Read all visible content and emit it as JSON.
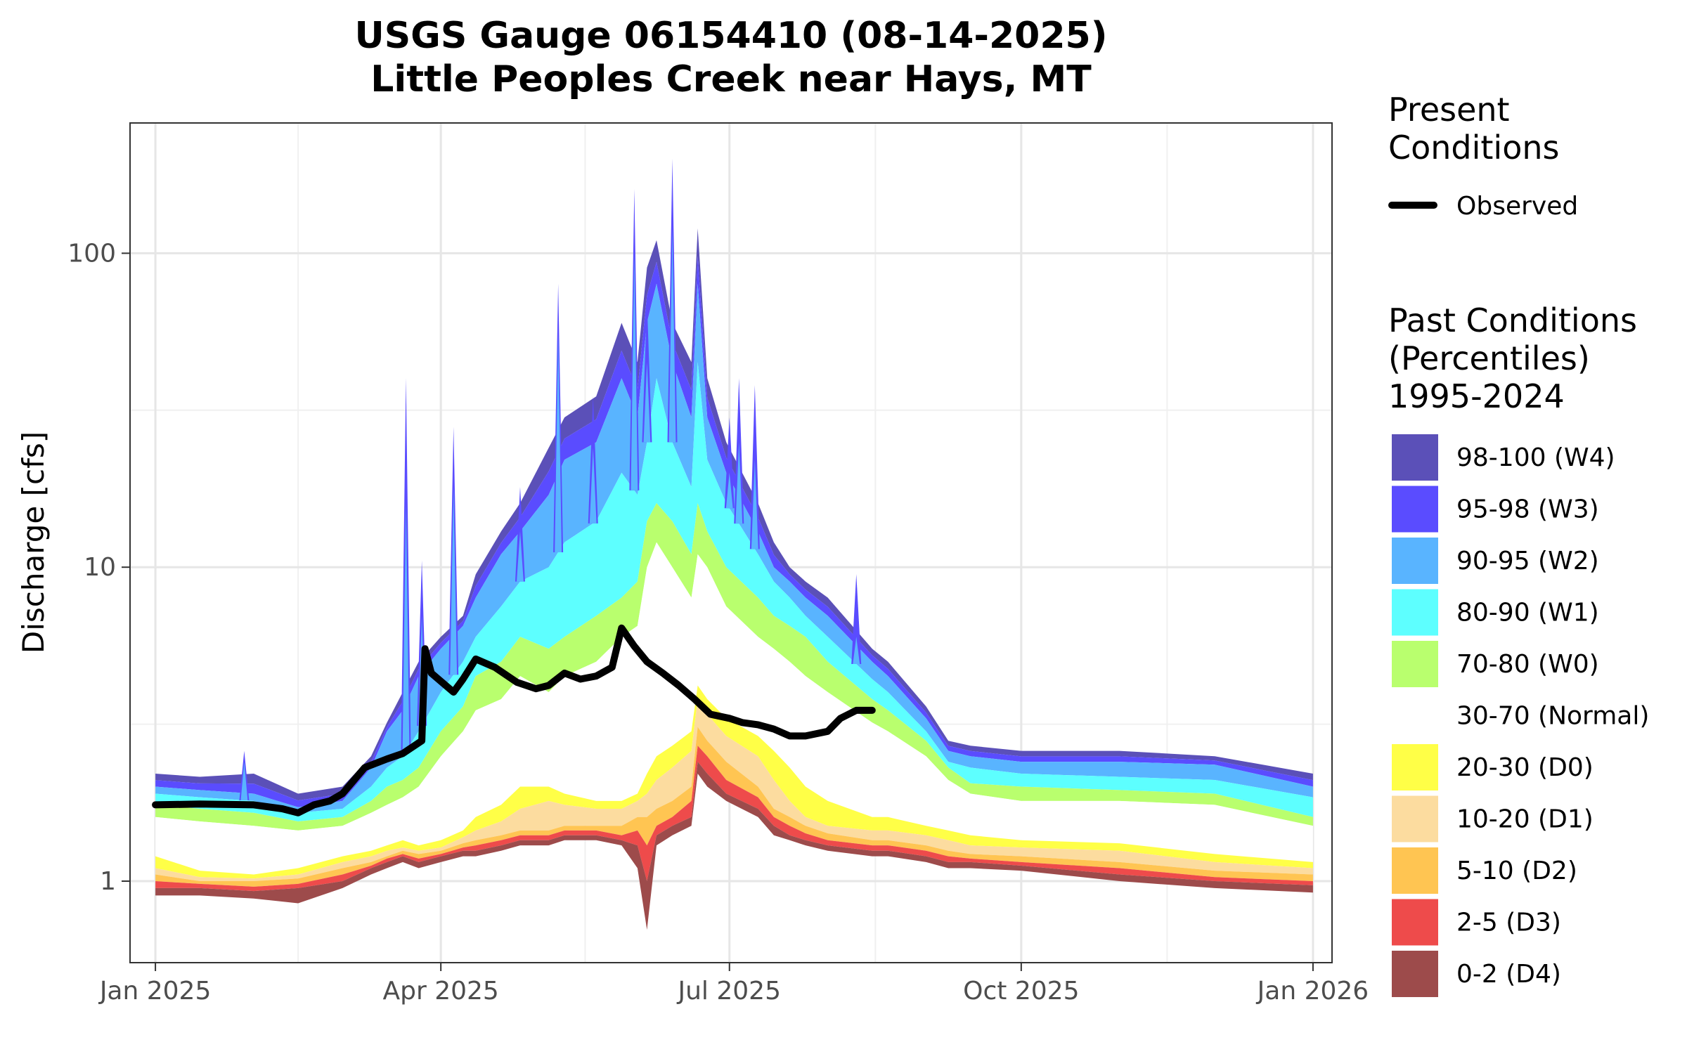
{
  "chart_data": {
    "type": "area",
    "title": [
      "USGS Gauge 06154410 (08-14-2025)",
      "Little Peoples Creek near Hays, MT"
    ],
    "xlabel": "",
    "ylabel": "Discharge [cfs]",
    "yscale": "log",
    "ylim": [
      0.55,
      260
    ],
    "xlim": [
      "2024-12-24",
      "2026-01-07"
    ],
    "x_ticks": [
      {
        "label": "Jan 2025",
        "date": "2025-01-01"
      },
      {
        "label": "Apr 2025",
        "date": "2025-04-01"
      },
      {
        "label": "Jul 2025",
        "date": "2025-07-01"
      },
      {
        "label": "Oct 2025",
        "date": "2025-10-01"
      },
      {
        "label": "Jan 2026",
        "date": "2026-01-01"
      }
    ],
    "y_ticks": [
      {
        "label": "1",
        "value": 1
      },
      {
        "label": "10",
        "value": 10
      },
      {
        "label": "100",
        "value": 100
      }
    ],
    "grid": true,
    "legend_position": "right",
    "legend": {
      "present_title": [
        "Present",
        "Conditions"
      ],
      "observed_label": "Observed",
      "past_title": [
        "Past Conditions",
        "(Percentiles)",
        "1995-2024"
      ],
      "bands": [
        {
          "label": "98-100 (W4)",
          "color": "#5b50b8"
        },
        {
          "label": "95-98 (W3)",
          "color": "#5a4cff"
        },
        {
          "label": "90-95 (W2)",
          "color": "#59b4ff"
        },
        {
          "label": "80-90 (W1)",
          "color": "#5dffff"
        },
        {
          "label": "70-80 (W0)",
          "color": "#b9ff6e"
        },
        {
          "label": "30-70 (Normal)",
          "color": "#ffffff"
        },
        {
          "label": "20-30 (D0)",
          "color": "#ffff47"
        },
        {
          "label": "10-20 (D1)",
          "color": "#fcdc9f"
        },
        {
          "label": "5-10 (D2)",
          "color": "#ffc552"
        },
        {
          "label": "2-5 (D3)",
          "color": "#ee4b4b"
        },
        {
          "label": "0-2 (D4)",
          "color": "#9d4b4b"
        }
      ]
    },
    "percentile_dates": [
      "2025-01-01",
      "2025-01-15",
      "2025-02-01",
      "2025-02-15",
      "2025-03-01",
      "2025-03-10",
      "2025-03-15",
      "2025-03-20",
      "2025-03-25",
      "2025-04-01",
      "2025-04-08",
      "2025-04-12",
      "2025-04-20",
      "2025-04-26",
      "2025-05-05",
      "2025-05-10",
      "2025-05-20",
      "2025-05-28",
      "2025-06-02",
      "2025-06-05",
      "2025-06-08",
      "2025-06-13",
      "2025-06-19",
      "2025-06-21",
      "2025-06-24",
      "2025-06-30",
      "2025-07-10",
      "2025-07-15",
      "2025-07-20",
      "2025-07-25",
      "2025-08-01",
      "2025-08-15",
      "2025-08-20",
      "2025-09-01",
      "2025-09-08",
      "2025-09-15",
      "2025-10-01",
      "2025-11-01",
      "2025-12-01",
      "2026-01-01"
    ],
    "percentiles": {
      "p0": [
        0.9,
        0.9,
        0.88,
        0.85,
        0.95,
        1.05,
        1.1,
        1.15,
        1.1,
        1.15,
        1.2,
        1.2,
        1.25,
        1.3,
        1.3,
        1.35,
        1.35,
        1.3,
        1.1,
        0.7,
        1.3,
        1.4,
        1.5,
        2.2,
        2.0,
        1.8,
        1.6,
        1.4,
        1.35,
        1.3,
        1.25,
        1.2,
        1.2,
        1.15,
        1.1,
        1.1,
        1.08,
        1.0,
        0.95,
        0.92
      ],
      "p2": [
        0.95,
        0.95,
        0.93,
        0.95,
        1.0,
        1.1,
        1.15,
        1.2,
        1.15,
        1.2,
        1.25,
        1.25,
        1.3,
        1.35,
        1.35,
        1.4,
        1.4,
        1.35,
        1.3,
        1.0,
        1.4,
        1.5,
        1.6,
        2.4,
        2.2,
        1.9,
        1.7,
        1.5,
        1.4,
        1.35,
        1.3,
        1.25,
        1.25,
        1.2,
        1.15,
        1.15,
        1.12,
        1.05,
        1.0,
        0.97
      ],
      "p5": [
        1.0,
        0.98,
        0.96,
        0.98,
        1.05,
        1.12,
        1.18,
        1.22,
        1.18,
        1.22,
        1.28,
        1.3,
        1.35,
        1.4,
        1.4,
        1.45,
        1.45,
        1.4,
        1.45,
        1.3,
        1.5,
        1.6,
        1.8,
        2.7,
        2.5,
        2.1,
        1.85,
        1.6,
        1.5,
        1.42,
        1.35,
        1.3,
        1.3,
        1.25,
        1.2,
        1.18,
        1.15,
        1.1,
        1.03,
        1.0
      ],
      "p10": [
        1.05,
        1.0,
        1.0,
        1.02,
        1.1,
        1.15,
        1.2,
        1.25,
        1.22,
        1.25,
        1.32,
        1.35,
        1.4,
        1.45,
        1.45,
        1.5,
        1.5,
        1.5,
        1.6,
        1.6,
        1.7,
        1.8,
        2.0,
        3.1,
        2.8,
        2.4,
        2.0,
        1.7,
        1.6,
        1.5,
        1.42,
        1.35,
        1.35,
        1.3,
        1.25,
        1.22,
        1.2,
        1.15,
        1.08,
        1.05
      ],
      "p20": [
        1.1,
        1.03,
        1.02,
        1.05,
        1.15,
        1.2,
        1.25,
        1.28,
        1.25,
        1.28,
        1.38,
        1.45,
        1.55,
        1.7,
        1.8,
        1.75,
        1.7,
        1.7,
        1.8,
        1.9,
        2.1,
        2.3,
        2.6,
        3.8,
        3.4,
        2.9,
        2.5,
        2.1,
        1.8,
        1.6,
        1.5,
        1.45,
        1.45,
        1.4,
        1.35,
        1.3,
        1.28,
        1.25,
        1.15,
        1.1
      ],
      "p30": [
        1.2,
        1.08,
        1.05,
        1.1,
        1.2,
        1.25,
        1.3,
        1.35,
        1.3,
        1.35,
        1.45,
        1.6,
        1.75,
        2.0,
        2.0,
        1.9,
        1.8,
        1.8,
        1.9,
        2.2,
        2.5,
        2.7,
        3.0,
        4.2,
        3.8,
        3.3,
        2.9,
        2.6,
        2.3,
        2.0,
        1.8,
        1.6,
        1.6,
        1.5,
        1.45,
        1.4,
        1.35,
        1.32,
        1.22,
        1.15
      ],
      "p70": [
        1.6,
        1.55,
        1.5,
        1.45,
        1.5,
        1.65,
        1.75,
        1.85,
        2.0,
        2.5,
        3.0,
        3.5,
        3.8,
        4.5,
        4.0,
        4.5,
        5.0,
        6.0,
        6.5,
        10.0,
        12.0,
        10.0,
        8.0,
        11.0,
        10.0,
        7.5,
        6.0,
        5.5,
        5.0,
        4.5,
        4.0,
        3.2,
        3.0,
        2.5,
        2.1,
        1.9,
        1.8,
        1.8,
        1.75,
        1.5
      ],
      "p80": [
        1.75,
        1.7,
        1.65,
        1.55,
        1.6,
        1.8,
        2.0,
        2.1,
        2.3,
        3.0,
        3.6,
        4.5,
        5.0,
        6.0,
        5.5,
        6.0,
        7.0,
        8.0,
        9.0,
        14.0,
        16.0,
        14.0,
        11.0,
        16.0,
        13.0,
        10.0,
        8.0,
        7.0,
        6.5,
        6.0,
        5.0,
        3.8,
        3.5,
        2.8,
        2.3,
        2.05,
        2.0,
        1.95,
        1.9,
        1.6
      ],
      "p90": [
        1.9,
        1.85,
        1.8,
        1.65,
        1.7,
        2.0,
        2.3,
        2.5,
        3.0,
        4.0,
        5.0,
        6.0,
        7.5,
        9.0,
        10.0,
        12.0,
        14.0,
        20.0,
        17.0,
        25.0,
        40.0,
        25.0,
        18.0,
        45.0,
        22.0,
        16.0,
        11.0,
        9.0,
        8.0,
        7.0,
        6.0,
        4.4,
        4.0,
        3.0,
        2.4,
        2.3,
        2.2,
        2.15,
        2.1,
        1.85
      ],
      "p95": [
        2.0,
        1.95,
        1.9,
        1.72,
        1.8,
        2.3,
        3.0,
        3.5,
        4.5,
        5.5,
        6.5,
        8.0,
        11.0,
        13.0,
        17.0,
        22.0,
        25.0,
        40.0,
        30.0,
        60.0,
        80.0,
        45.0,
        30.0,
        80.0,
        30.0,
        20.0,
        13.0,
        10.0,
        9.0,
        8.0,
        7.0,
        5.0,
        4.5,
        3.3,
        2.6,
        2.5,
        2.4,
        2.4,
        2.35,
        2.0
      ],
      "p100": [
        2.2,
        2.15,
        2.2,
        1.9,
        2.0,
        2.5,
        3.2,
        4.0,
        5.0,
        6.0,
        7.0,
        9.5,
        13.0,
        16.0,
        24.0,
        30.0,
        35.0,
        60.0,
        45.0,
        90.0,
        110.0,
        60.0,
        45.0,
        120.0,
        40.0,
        25.0,
        16.0,
        12.0,
        10.0,
        9.0,
        8.0,
        5.5,
        5.0,
        3.6,
        2.8,
        2.7,
        2.6,
        2.6,
        2.5,
        2.2
      ]
    },
    "spikes": [
      {
        "date": "2025-01-29",
        "p100": 2.6,
        "p95": 2.4
      },
      {
        "date": "2025-03-21",
        "p100": 40,
        "p95": 16
      },
      {
        "date": "2025-03-26",
        "p100": 10.5,
        "p95": 7
      },
      {
        "date": "2025-04-05",
        "p100": 28,
        "p95": 18
      },
      {
        "date": "2025-04-26",
        "p100": 18,
        "p95": 13
      },
      {
        "date": "2025-05-08",
        "p100": 80,
        "p95": 55
      },
      {
        "date": "2025-05-19",
        "p100": 35,
        "p95": 24
      },
      {
        "date": "2025-06-01",
        "p100": 160,
        "p95": 100
      },
      {
        "date": "2025-06-05",
        "p100": 70,
        "p95": 45
      },
      {
        "date": "2025-06-13",
        "p100": 200,
        "p95": 120
      },
      {
        "date": "2025-07-01",
        "p100": 30,
        "p95": 20
      },
      {
        "date": "2025-07-04",
        "p100": 40,
        "p95": 25
      },
      {
        "date": "2025-07-09",
        "p100": 38,
        "p95": 22
      },
      {
        "date": "2025-08-10",
        "p100": 9.5,
        "p95": 6
      }
    ],
    "observed": {
      "name": "Observed",
      "color": "#000000",
      "dates": [
        "2025-01-01",
        "2025-01-15",
        "2025-02-01",
        "2025-02-10",
        "2025-02-15",
        "2025-02-20",
        "2025-02-25",
        "2025-03-01",
        "2025-03-08",
        "2025-03-15",
        "2025-03-20",
        "2025-03-26",
        "2025-03-27",
        "2025-03-29",
        "2025-04-05",
        "2025-04-08",
        "2025-04-12",
        "2025-04-18",
        "2025-04-25",
        "2025-05-01",
        "2025-05-05",
        "2025-05-10",
        "2025-05-15",
        "2025-05-20",
        "2025-05-25",
        "2025-05-28",
        "2025-06-01",
        "2025-06-05",
        "2025-06-10",
        "2025-06-15",
        "2025-06-20",
        "2025-06-25",
        "2025-07-01",
        "2025-07-05",
        "2025-07-10",
        "2025-07-15",
        "2025-07-20",
        "2025-07-25",
        "2025-08-01",
        "2025-08-05",
        "2025-08-10",
        "2025-08-15"
      ],
      "values": [
        1.75,
        1.76,
        1.75,
        1.7,
        1.65,
        1.75,
        1.8,
        1.9,
        2.3,
        2.45,
        2.55,
        2.8,
        5.5,
        4.6,
        4.0,
        4.4,
        5.1,
        4.8,
        4.3,
        4.1,
        4.2,
        4.6,
        4.4,
        4.5,
        4.8,
        6.4,
        5.6,
        5.0,
        4.6,
        4.2,
        3.8,
        3.4,
        3.3,
        3.2,
        3.15,
        3.05,
        2.9,
        2.9,
        3.0,
        3.3,
        3.5,
        3.5
      ]
    }
  }
}
